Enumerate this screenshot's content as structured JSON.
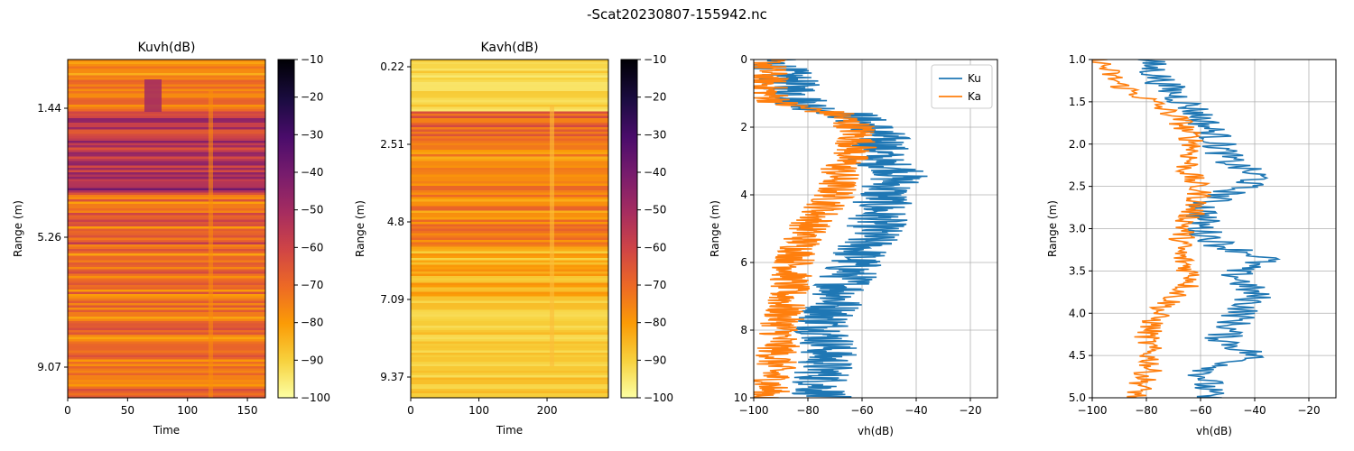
{
  "figure_title": "-Scat20230807-155942.nc",
  "colors": {
    "ku": "#1f77b4",
    "ka": "#ff7f0e",
    "grid": "#b0b0b0",
    "inferno": [
      "#000004",
      "#1b0c41",
      "#4a0c6b",
      "#781c6d",
      "#a52c60",
      "#cf4446",
      "#ed6925",
      "#fb9b06",
      "#f7d13d",
      "#fcffa4"
    ]
  },
  "chart_data": [
    {
      "type": "heatmap",
      "title": "Kuvh(dB)",
      "xlabel": "Time",
      "ylabel": "Range (m)",
      "xlim": [
        0,
        165
      ],
      "xticks": [
        "0",
        "50",
        "100",
        "150"
      ],
      "yticks": [
        "1.44",
        "5.26",
        "9.07"
      ],
      "colorbar": {
        "vmin": -100,
        "vmax": -10,
        "ticks": [
          "-10",
          "-20",
          "-30",
          "-40",
          "-50",
          "-60",
          "-70",
          "-80",
          "-90",
          "-100"
        ]
      }
    },
    {
      "type": "heatmap",
      "title": "Kavh(dB)",
      "xlabel": "Time",
      "ylabel": "Range (m)",
      "xlim": [
        0,
        290
      ],
      "xticks": [
        "0",
        "100",
        "200"
      ],
      "yticks": [
        "0.22",
        "2.51",
        "4.8",
        "7.09",
        "9.37"
      ],
      "colorbar": {
        "vmin": -100,
        "vmax": -10,
        "ticks": [
          "-10",
          "-20",
          "-30",
          "-40",
          "-50",
          "-60",
          "-70",
          "-80",
          "-90",
          "-100"
        ]
      }
    },
    {
      "type": "line",
      "xlabel": "vh(dB)",
      "ylabel": "Range (m)",
      "xlim": [
        -100,
        -10
      ],
      "ylim": [
        10,
        0
      ],
      "xticks": [
        "−100",
        "−80",
        "−60",
        "−40",
        "−20"
      ],
      "yticks": [
        "0",
        "2",
        "4",
        "6",
        "8",
        "10"
      ],
      "grid": true,
      "legend": "top-right",
      "series": [
        {
          "name": "Ku",
          "profile": [
            [
              0,
              -95
            ],
            [
              0.5,
              -88
            ],
            [
              1.0,
              -85
            ],
            [
              1.4,
              -80
            ],
            [
              1.6,
              -65
            ],
            [
              2.0,
              -57
            ],
            [
              2.4,
              -52
            ],
            [
              3.0,
              -55
            ],
            [
              3.3,
              -45
            ],
            [
              4.0,
              -52
            ],
            [
              5.0,
              -55
            ],
            [
              6.0,
              -63
            ],
            [
              7.0,
              -68
            ],
            [
              7.8,
              -74
            ],
            [
              8.5,
              -72
            ],
            [
              9.5,
              -75
            ],
            [
              10,
              -75
            ]
          ]
        },
        {
          "name": "Ka",
          "profile": [
            [
              0,
              -95
            ],
            [
              0.5,
              -95
            ],
            [
              1.0,
              -95
            ],
            [
              1.3,
              -90
            ],
            [
              1.6,
              -70
            ],
            [
              2.0,
              -62
            ],
            [
              2.6,
              -62
            ],
            [
              3.2,
              -68
            ],
            [
              4.0,
              -70
            ],
            [
              5.0,
              -80
            ],
            [
              6.0,
              -85
            ],
            [
              7.0,
              -88
            ],
            [
              8.0,
              -90
            ],
            [
              9.0,
              -92
            ],
            [
              10,
              -95
            ]
          ]
        }
      ]
    },
    {
      "type": "line",
      "xlabel": "vh(dB)",
      "ylabel": "Range (m)",
      "xlim": [
        -100,
        -10
      ],
      "ylim": [
        5,
        1
      ],
      "xticks": [
        "−100",
        "−80",
        "−60",
        "−40",
        "−20"
      ],
      "yticks": [
        "1.0",
        "1.5",
        "2.0",
        "2.5",
        "3.0",
        "3.5",
        "4.0",
        "4.5",
        "5.0"
      ],
      "grid": true,
      "series": [
        {
          "name": "Ku",
          "profile": [
            [
              1.0,
              -80
            ],
            [
              1.2,
              -76
            ],
            [
              1.4,
              -70
            ],
            [
              1.6,
              -62
            ],
            [
              1.9,
              -55
            ],
            [
              2.2,
              -50
            ],
            [
              2.4,
              -38
            ],
            [
              2.7,
              -58
            ],
            [
              3.0,
              -60
            ],
            [
              3.2,
              -52
            ],
            [
              3.35,
              -35
            ],
            [
              3.5,
              -48
            ],
            [
              3.8,
              -40
            ],
            [
              4.0,
              -45
            ],
            [
              4.3,
              -52
            ],
            [
              4.5,
              -40
            ],
            [
              4.7,
              -58
            ],
            [
              5.0,
              -58
            ]
          ]
        },
        {
          "name": "Ka",
          "profile": [
            [
              1.0,
              -98
            ],
            [
              1.3,
              -90
            ],
            [
              1.5,
              -78
            ],
            [
              1.7,
              -68
            ],
            [
              2.0,
              -62
            ],
            [
              2.3,
              -65
            ],
            [
              2.6,
              -60
            ],
            [
              3.0,
              -66
            ],
            [
              3.3,
              -68
            ],
            [
              3.6,
              -62
            ],
            [
              4.0,
              -76
            ],
            [
              4.3,
              -80
            ],
            [
              4.6,
              -78
            ],
            [
              5.0,
              -84
            ]
          ]
        }
      ]
    }
  ]
}
